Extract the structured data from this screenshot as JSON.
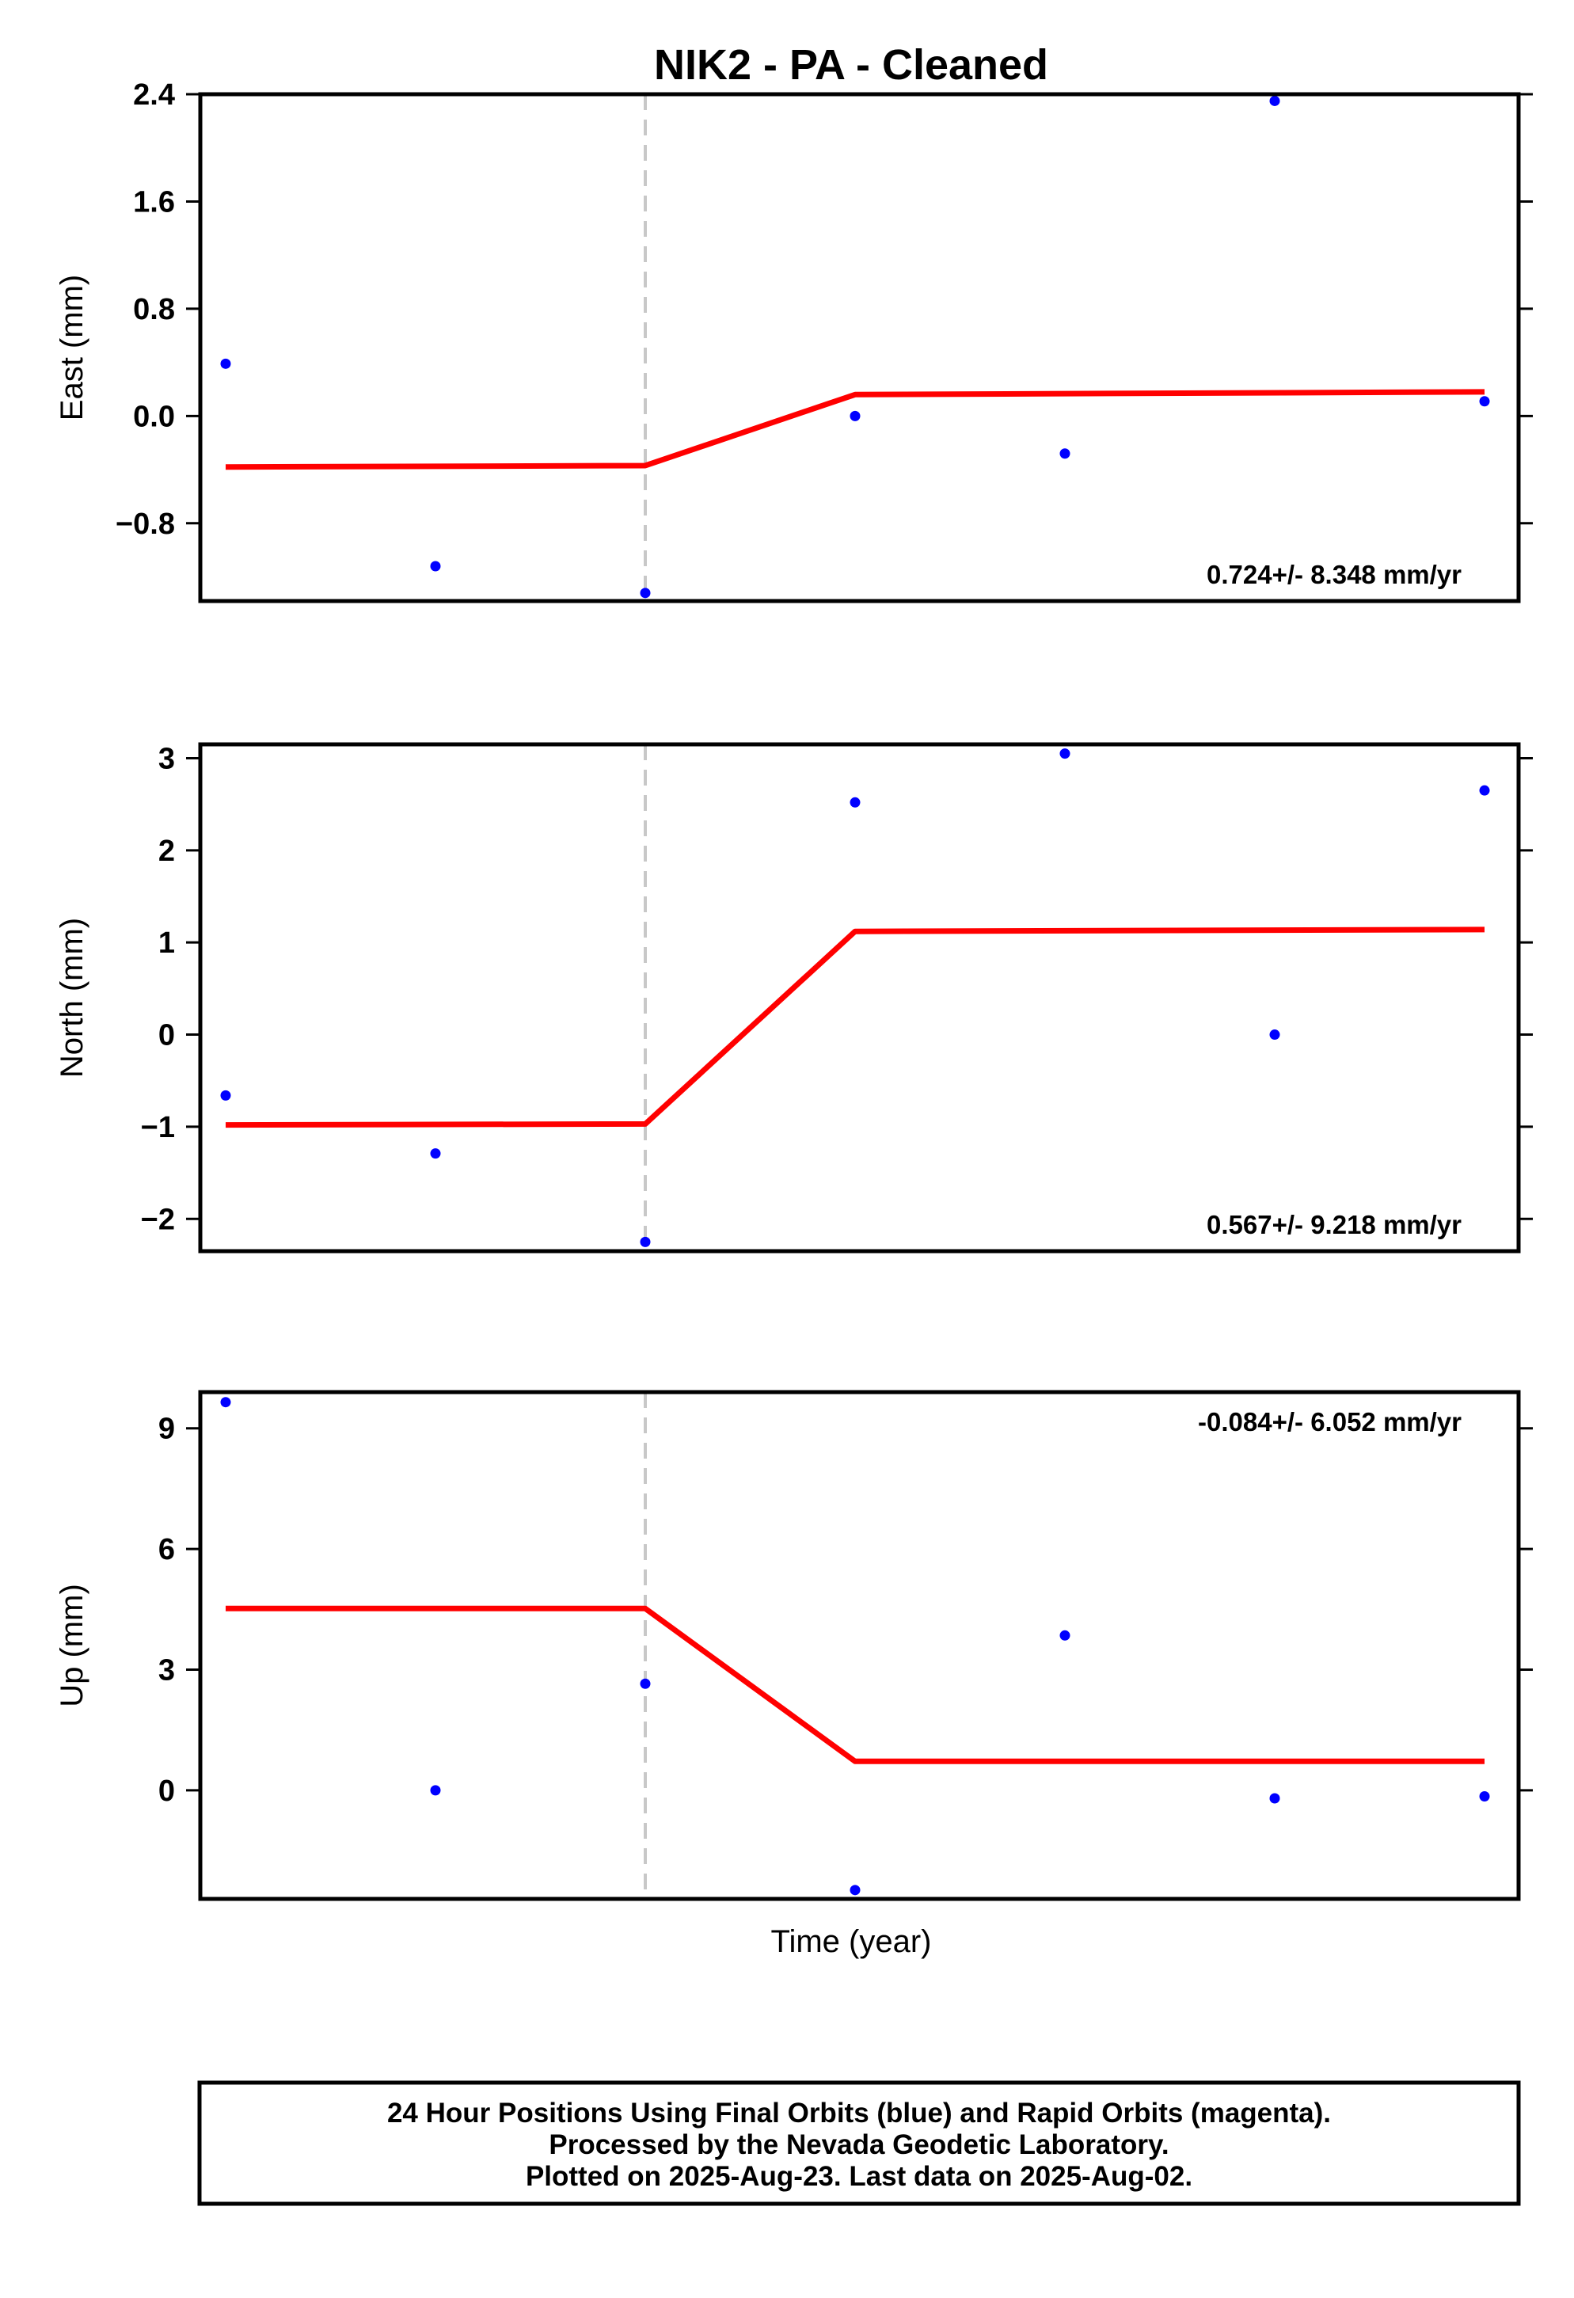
{
  "title": "NIK2  - PA - Cleaned",
  "xlabel": "Time (year)",
  "colors": {
    "data_points": "#0000ff",
    "model_line": "#ff0000",
    "break_line": "#c8c8c8",
    "frame": "#000000"
  },
  "footer": {
    "lines": [
      "24 Hour Positions Using Final Orbits (blue) and Rapid Orbits (magenta).",
      "Processed by the Nevada Geodetic Laboratory.",
      "Plotted on 2025-Aug-23. Last data on 2025-Aug-02."
    ]
  },
  "chart_data": [
    {
      "type": "scatter",
      "panel": "east",
      "ylabel": "East (mm)",
      "ylim": [
        -1.38,
        2.4
      ],
      "yticks": [
        -0.8,
        0.0,
        0.8,
        1.6,
        2.4
      ],
      "ytick_labels": [
        "−0.8",
        "0.0",
        "0.8",
        "1.6",
        "2.4"
      ],
      "rate_label": "0.724+/- 8.348 mm/yr",
      "rate_position": "bottom-right",
      "break_index": 2,
      "x_index": [
        0,
        1,
        2,
        3,
        4,
        5,
        6
      ],
      "series": [
        {
          "name": "",
          "values": [
            0.39,
            -1.12,
            -1.32,
            0.0,
            -0.28,
            2.35,
            0.11
          ]
        }
      ],
      "model": {
        "x_index": [
          0,
          2,
          3,
          6
        ],
        "values": [
          -0.38,
          -0.37,
          0.16,
          0.18
        ]
      }
    },
    {
      "type": "scatter",
      "panel": "north",
      "ylabel": "North (mm)",
      "ylim": [
        -2.35,
        3.15
      ],
      "yticks": [
        -2,
        -1,
        0,
        1,
        2,
        3
      ],
      "ytick_labels": [
        "−2",
        "−1",
        "0",
        "1",
        "2",
        "3"
      ],
      "rate_label": "0.567+/- 9.218 mm/yr",
      "rate_position": "bottom-right",
      "break_index": 2,
      "x_index": [
        0,
        1,
        2,
        3,
        4,
        5,
        6
      ],
      "series": [
        {
          "name": "",
          "values": [
            -0.66,
            -1.29,
            -2.25,
            2.52,
            3.05,
            0.0,
            2.65
          ]
        }
      ],
      "model": {
        "x_index": [
          0,
          2,
          3,
          6
        ],
        "values": [
          -0.98,
          -0.97,
          1.12,
          1.14
        ]
      }
    },
    {
      "type": "scatter",
      "panel": "up",
      "ylabel": "Up (mm)",
      "ylim": [
        -2.7,
        9.9
      ],
      "yticks": [
        0,
        3,
        6,
        9
      ],
      "ytick_labels": [
        "0",
        "3",
        "6",
        "9"
      ],
      "rate_label": "-0.084+/- 6.052 mm/yr",
      "rate_position": "top-right",
      "break_index": 2,
      "x_index": [
        0,
        1,
        2,
        3,
        4,
        5,
        6
      ],
      "series": [
        {
          "name": "",
          "values": [
            9.65,
            0.0,
            2.65,
            -2.48,
            3.85,
            -0.2,
            -0.15
          ]
        }
      ],
      "model": {
        "x_index": [
          0,
          2,
          3,
          6
        ],
        "values": [
          4.52,
          4.52,
          0.72,
          0.72
        ]
      }
    }
  ]
}
